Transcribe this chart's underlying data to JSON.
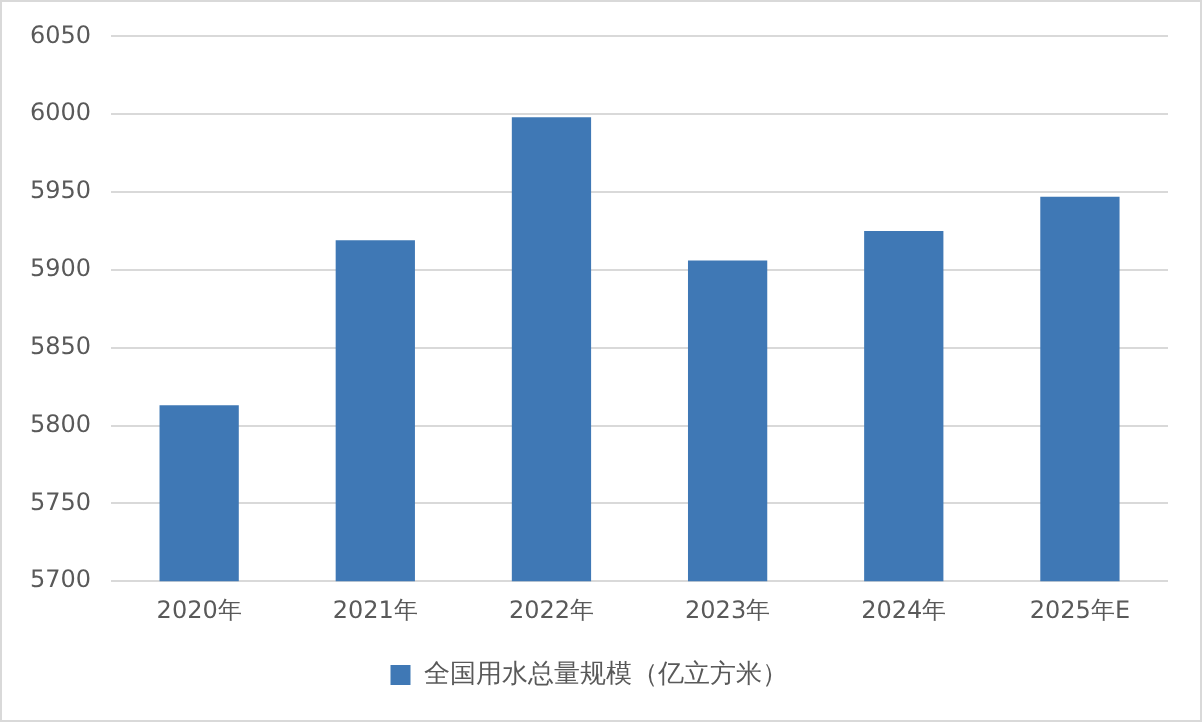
{
  "chart_data": {
    "type": "bar",
    "categories": [
      "2020年",
      "2021年",
      "2022年",
      "2023年",
      "2024年",
      "2025年E"
    ],
    "series": [
      {
        "name": "全国用水总量规模（亿立方米）",
        "color": "#3f78b5",
        "values": [
          5813,
          5919,
          5998,
          5906,
          5925,
          5947
        ]
      }
    ],
    "ylim": [
      5700,
      6050
    ],
    "yticks": [
      5700,
      5750,
      5800,
      5850,
      5900,
      5950,
      6000,
      6050
    ],
    "grid": "y",
    "legend": "bottom"
  }
}
